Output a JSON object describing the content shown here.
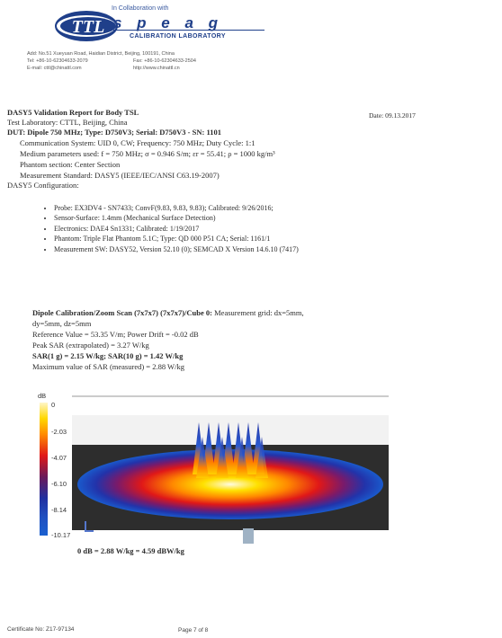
{
  "header": {
    "logo_text": "TTL",
    "collab": "In Collaboration with",
    "speag": "s p e a g",
    "calibration_lab": "CALIBRATION LABORATORY",
    "address_line1": "Add: No.51 Xueyuan Road, Haidian District, Beijing, 100191, China",
    "tel": "Tel: +86-10-62304633-2079",
    "fax": "Fax: +86-10-62304633-2504",
    "email": "E-mail: cttl@chinattl.com",
    "web": "http://www.chinattl.cn"
  },
  "report": {
    "title": "DASY5 Validation Report for Body TSL",
    "date": "Date: 09.13.2017",
    "lab": "Test Laboratory: CTTL, Beijing, China",
    "dut": "DUT: Dipole 750 MHz; Type: D750V3; Serial: D750V3 - SN: 1101",
    "comm": "Communication System: UID 0, CW; Frequency: 750 MHz; Duty Cycle: 1:1",
    "medium": "Medium parameters used: f = 750 MHz; σ = 0.946 S/m; εr = 55.41; ρ = 1000 kg/m³",
    "phantom_section": "Phantom section: Center Section",
    "standard": "Measurement Standard: DASY5 (IEEE/IEC/ANSI C63.19-2007)",
    "config_heading": "DASY5 Configuration:"
  },
  "config_items": [
    "Probe: EX3DV4 - SN7433; ConvF(9.83, 9.83, 9.83); Calibrated: 9/26/2016;",
    "Sensor-Surface: 1.4mm (Mechanical Surface Detection)",
    "Electronics: DAE4 Sn1331; Calibrated: 1/19/2017",
    "Phantom: Triple Flat Phantom 5.1C; Type: QD 000 P51 CA; Serial: 1161/1",
    "Measurement SW: DASY52, Version 52.10 (0); SEMCAD X Version 14.6.10 (7417)"
  ],
  "scan": {
    "heading_bold": "Dipole Calibration/Zoom Scan (7x7x7) (7x7x7)/Cube 0:",
    "heading_rest": " Measurement grid: dx=5mm,",
    "grid_cont": "dy=5mm, dz=5mm",
    "reference": "Reference Value = 53.35 V/m; Power Drift = -0.02 dB",
    "peak": "Peak SAR (extrapolated) = 3.27 W/kg",
    "sar": "SAR(1 g) = 2.15 W/kg; SAR(10 g) = 1.42 W/kg",
    "max": "Maximum value of SAR (measured) = 2.88 W/kg"
  },
  "scale": {
    "unit": "dB",
    "ticks": [
      "0",
      "-2.03",
      "-4.07",
      "-6.10",
      "-8.14",
      "-10.17"
    ]
  },
  "figure_caption": "0 dB = 2.88 W/kg = 4.59 dBW/kg",
  "footer": {
    "certificate": "Certificate No: Z17-97134",
    "page": "Page 7 of 8"
  }
}
